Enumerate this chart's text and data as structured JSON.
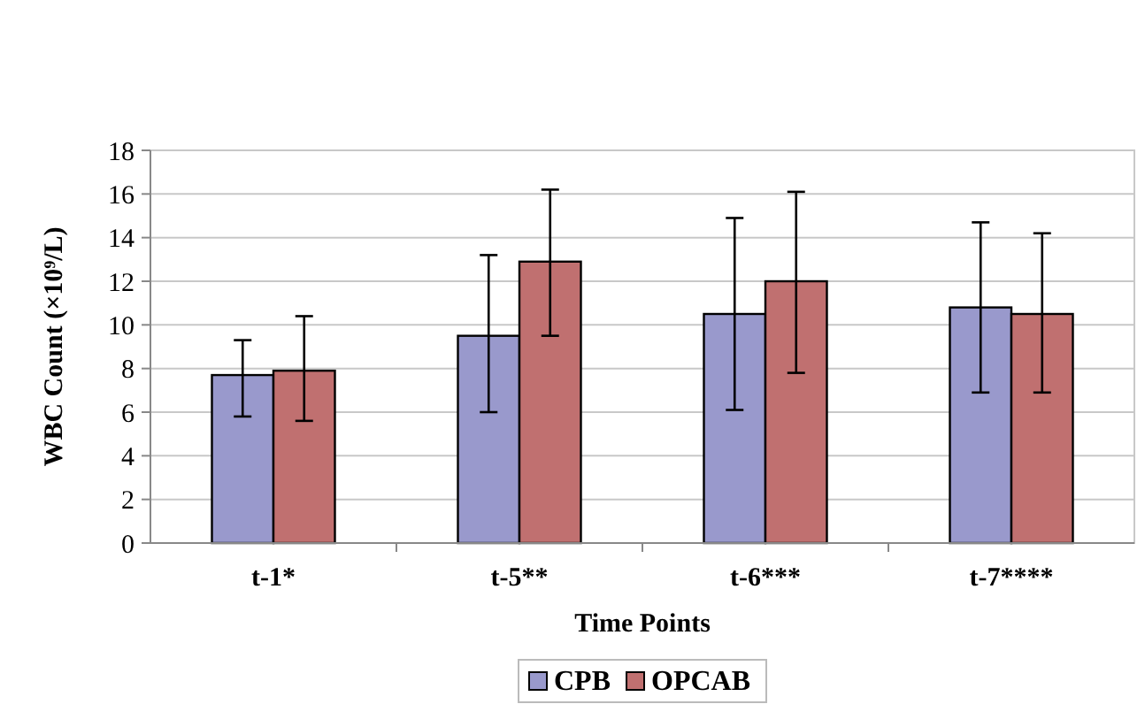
{
  "chart_data": {
    "type": "bar",
    "xlabel": "Time Points",
    "ylabel": "WBC Count (×10⁹/L)",
    "categories": [
      "t-1*",
      "t-5**",
      "t-6***",
      "t-7****"
    ],
    "series": [
      {
        "name": "CPB",
        "color": "#9999cc",
        "values": [
          7.7,
          9.5,
          10.5,
          10.8
        ],
        "errors": [
          [
            5.8,
            9.3
          ],
          [
            6.0,
            13.2
          ],
          [
            6.1,
            14.9
          ],
          [
            6.9,
            14.7
          ]
        ]
      },
      {
        "name": "OPCAB",
        "color": "#c07070",
        "values": [
          7.9,
          12.9,
          12.0,
          10.5
        ],
        "errors": [
          [
            5.6,
            10.4
          ],
          [
            9.5,
            16.2
          ],
          [
            7.8,
            16.1
          ],
          [
            6.9,
            14.2
          ]
        ]
      }
    ],
    "ylim": [
      0,
      18
    ],
    "yticks": [
      0,
      2,
      4,
      6,
      8,
      10,
      12,
      14,
      16,
      18
    ],
    "grid": "y",
    "legend": "bottom"
  }
}
